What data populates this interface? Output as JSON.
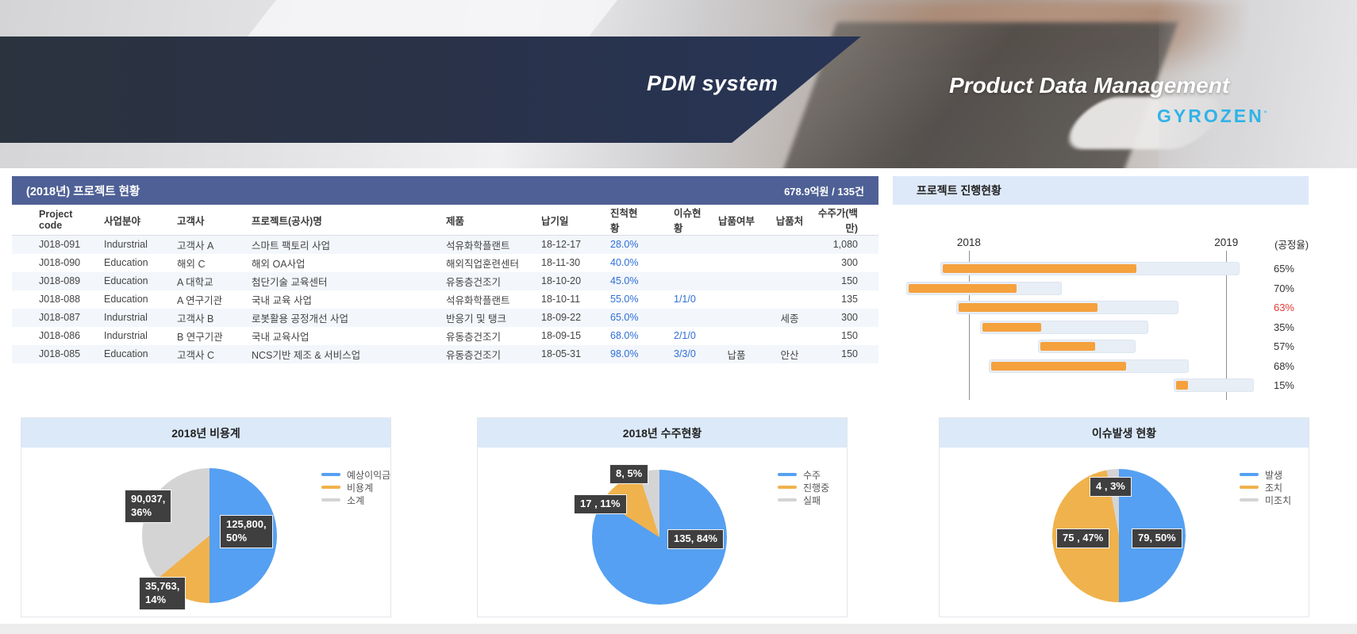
{
  "banner": {
    "pdm_title": "PDM system",
    "product_title": "Product Data Management",
    "brand": "GYROZEN",
    "brand_mark": "°"
  },
  "project_table": {
    "title": "(2018년) 프로젝트 현황",
    "summary": "678.9억원 / 135건",
    "columns": [
      "Project code",
      "사업분야",
      "고객사",
      "프로젝트(공사)명",
      "제품",
      "납기일",
      "진척현황",
      "이슈현황",
      "납품여부",
      "납품처",
      "수주가(백만)"
    ],
    "rows": [
      [
        "J018-091",
        "Indurstrial",
        "고객사 A",
        "스마트 팩토리 사업",
        "석유화학플랜트",
        "18-12-17",
        "28.0%",
        "",
        "",
        "",
        "1,080"
      ],
      [
        "J018-090",
        "Education",
        "해외 C",
        "해외 OA사업",
        "해외직업훈련센터",
        "18-11-30",
        "40.0%",
        "",
        "",
        "",
        "300"
      ],
      [
        "J018-089",
        "Education",
        "A 대학교",
        "첨단기술 교육센터",
        "유동층건조기",
        "18-10-20",
        "45.0%",
        "",
        "",
        "",
        "150"
      ],
      [
        "J018-088",
        "Education",
        "A 연구기관",
        "국내 교육 사업",
        "석유화학플랜트",
        "18-10-11",
        "55.0%",
        "1/1/0",
        "",
        "",
        "135"
      ],
      [
        "J018-087",
        "Indurstrial",
        "고객사 B",
        "로봇활용 공정개선 사업",
        "반응기 및 탱크",
        "18-09-22",
        "65.0%",
        "",
        "",
        "세종",
        "300"
      ],
      [
        "J018-086",
        "Indurstrial",
        "B 연구기관",
        "국내 교육사업",
        "유동층건조기",
        "18-09-15",
        "68.0%",
        "2/1/0",
        "",
        "",
        "150"
      ],
      [
        "J018-085",
        "Education",
        "고객사 C",
        "NCS기반 제조 & 서비스업",
        "유동층건조기",
        "18-05-31",
        "98.0%",
        "3/3/0",
        "납품",
        "안산",
        "150"
      ]
    ]
  },
  "chart_data": [
    {
      "type": "bar",
      "subtype": "gantt",
      "title": "프로젝트 진행현황",
      "axis_labels": [
        "2018",
        "2019"
      ],
      "unit_label": "(공정율)",
      "gridline_pcts": [
        18.3,
        80.2
      ],
      "bar_color": "#f5a13d",
      "track_color": "#e8eef6",
      "alert_color": "#e53935",
      "rows": [
        {
          "start_pct": 11.5,
          "span_pct": 71.9,
          "progress_pct": 65,
          "progress_label": "65%",
          "alert": false
        },
        {
          "start_pct": 3.2,
          "span_pct": 37.4,
          "progress_pct": 70,
          "progress_label": "70%",
          "alert": false
        },
        {
          "start_pct": 15.3,
          "span_pct": 53.4,
          "progress_pct": 63,
          "progress_label": "63%",
          "alert": true
        },
        {
          "start_pct": 21.0,
          "span_pct": 40.5,
          "progress_pct": 35,
          "progress_label": "35%",
          "alert": false
        },
        {
          "start_pct": 34.9,
          "span_pct": 23.5,
          "progress_pct": 57,
          "progress_label": "57%",
          "alert": false
        },
        {
          "start_pct": 23.1,
          "span_pct": 48.1,
          "progress_pct": 68,
          "progress_label": "68%",
          "alert": false
        },
        {
          "start_pct": 67.6,
          "span_pct": 19.3,
          "progress_pct": 15,
          "progress_label": "15%",
          "alert": false
        }
      ]
    },
    {
      "type": "pie",
      "title": "2018년 비용계",
      "legend_position": "right",
      "slices": [
        {
          "name": "예상이익금",
          "value": 125800,
          "pct": 50,
          "color": "#55a0f2",
          "label": "125,800,\n50%"
        },
        {
          "name": "비용계",
          "value": 35763,
          "pct": 14,
          "color": "#f0b24c",
          "label": "35,763,\n14%"
        },
        {
          "name": "소계",
          "value": 90037,
          "pct": 36,
          "color": "#d4d4d4",
          "label": "90,037,\n36%"
        }
      ]
    },
    {
      "type": "pie",
      "title": "2018년 수주현황",
      "legend_position": "right",
      "slices": [
        {
          "name": "수주",
          "value": 135,
          "pct": 84,
          "color": "#55a0f2",
          "label": "135, 84%"
        },
        {
          "name": "진행중",
          "value": 17,
          "pct": 11,
          "color": "#f0b24c",
          "label": "17 , 11%"
        },
        {
          "name": "실패",
          "value": 8,
          "pct": 5,
          "color": "#d4d4d4",
          "label": "8, 5%"
        }
      ]
    },
    {
      "type": "pie",
      "title": "이슈발생 현황",
      "legend_position": "right",
      "slices": [
        {
          "name": "발생",
          "value": 79,
          "pct": 50,
          "color": "#55a0f2",
          "label": "79, 50%"
        },
        {
          "name": "조치",
          "value": 75,
          "pct": 47,
          "color": "#f0b24c",
          "label": "75 , 47%"
        },
        {
          "name": "미조치",
          "value": 4,
          "pct": 3,
          "color": "#d4d4d4",
          "label": "4 , 3%"
        }
      ]
    }
  ]
}
